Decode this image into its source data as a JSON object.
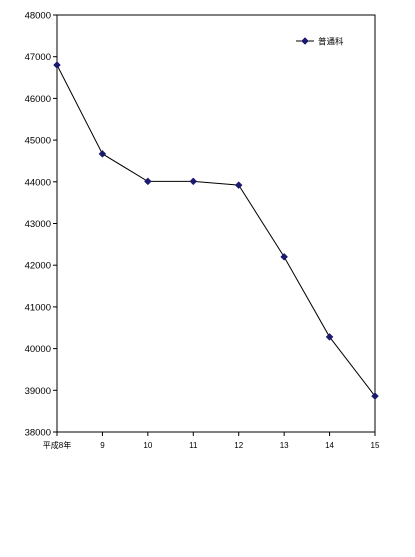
{
  "chart_data": {
    "type": "line",
    "title": "",
    "xlabel": "",
    "ylabel": "",
    "categories": [
      "平成8年",
      "9",
      "10",
      "11",
      "12",
      "13",
      "14",
      "15"
    ],
    "series": [
      {
        "name": "普通科",
        "values": [
          46800,
          44670,
          44010,
          44010,
          43920,
          42200,
          40280,
          38860
        ],
        "color": "#1a1a6e",
        "marker": "diamond"
      }
    ],
    "ylim": [
      38000,
      48000
    ],
    "yticks": [
      38000,
      39000,
      40000,
      41000,
      42000,
      43000,
      44000,
      45000,
      46000,
      47000,
      48000
    ],
    "grid": false,
    "legend_position": "top-right"
  }
}
